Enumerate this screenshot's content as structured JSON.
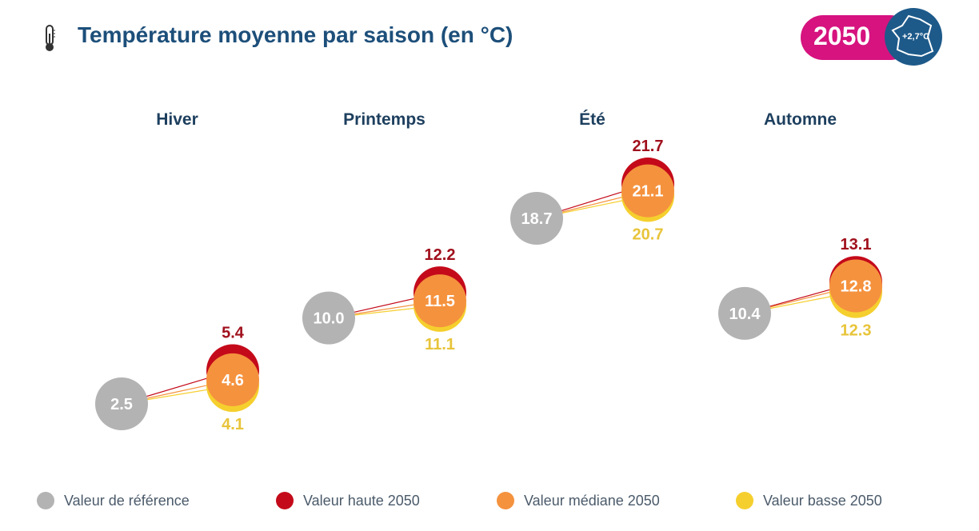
{
  "header": {
    "title": "Température moyenne par saison (en °C)",
    "icon": "thermometer-icon",
    "badge_year": "2050",
    "badge_delta": "+2,7°C",
    "badge_icon": "france-map-icon"
  },
  "colors": {
    "reference": "#b3b3b3",
    "high": "#c40a1a",
    "median": "#f5923e",
    "low": "#f5cf2e",
    "title": "#1d4f7a",
    "badge": "#d6137f"
  },
  "chart_data": {
    "type": "scatter",
    "categories": [
      "Hiver",
      "Printemps",
      "Été",
      "Automne"
    ],
    "series": [
      {
        "name": "Valeur de référence",
        "values": [
          2.5,
          10.0,
          18.7,
          10.4
        ]
      },
      {
        "name": "Valeur haute 2050",
        "values": [
          5.4,
          12.2,
          21.7,
          13.1
        ]
      },
      {
        "name": "Valeur médiane 2050",
        "values": [
          4.6,
          11.5,
          21.1,
          12.8
        ]
      },
      {
        "name": "Valeur basse 2050",
        "values": [
          4.1,
          11.1,
          20.7,
          12.3
        ]
      }
    ],
    "labels": {
      "reference": [
        "2.5",
        "10.0",
        "18.7",
        "10.4"
      ],
      "high": [
        "5.4",
        "12.2",
        "21.7",
        "13.1"
      ],
      "median": [
        "4.6",
        "11.5",
        "21.1",
        "12.8"
      ],
      "low": [
        "4.1",
        "11.1",
        "20.7",
        "12.3"
      ]
    },
    "legend": "bottom"
  }
}
